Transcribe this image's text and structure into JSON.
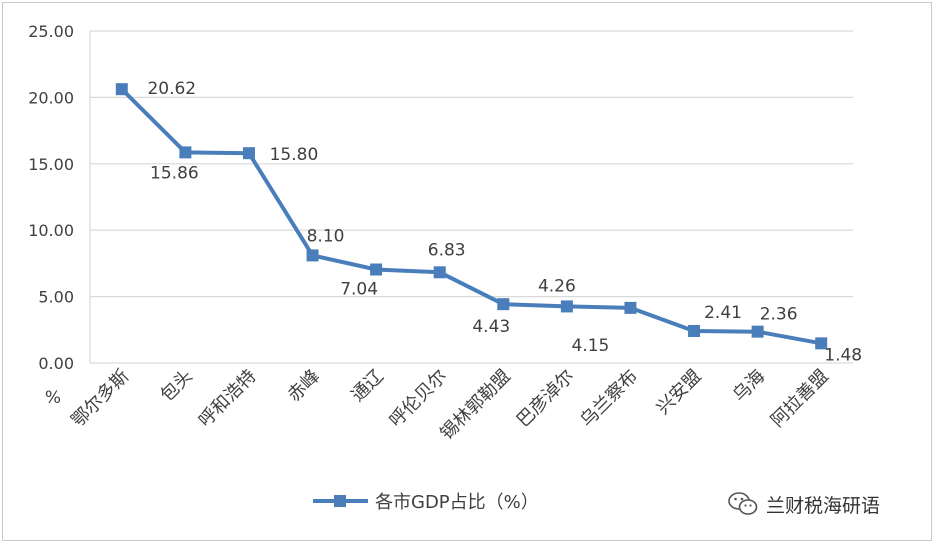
{
  "chart_data": {
    "type": "line",
    "categories": [
      "鄂尔多斯",
      "包头",
      "呼和浩特",
      "赤峰",
      "通辽",
      "呼伦贝尔",
      "锡林郭勒盟",
      "巴彦淖尔",
      "乌兰察布",
      "兴安盟",
      "乌海",
      "阿拉善盟"
    ],
    "series": [
      {
        "name": "各市GDP占比（%）",
        "values": [
          20.62,
          15.86,
          15.8,
          8.1,
          7.04,
          6.83,
          4.43,
          4.26,
          4.15,
          2.41,
          2.36,
          1.48
        ],
        "labels": [
          "20.62",
          "15.86",
          "15.80",
          "8.10",
          "7.04",
          "6.83",
          "4.43",
          "4.26",
          "4.15",
          "2.41",
          "2.36",
          "1.48"
        ],
        "color": "#4a7ebb"
      }
    ],
    "yticks": [
      "0.00",
      "5.00",
      "10.00",
      "15.00",
      "20.00",
      "25.00"
    ],
    "ylim": [
      0,
      25
    ],
    "ylabel": "%",
    "grid": true,
    "legend_position": "bottom"
  },
  "colors": {
    "line": "#4a7ebb",
    "grid": "#d9d9d9",
    "text": "#404040"
  },
  "watermark": {
    "text": "兰财税海研语",
    "icon": "wechat-icon"
  }
}
